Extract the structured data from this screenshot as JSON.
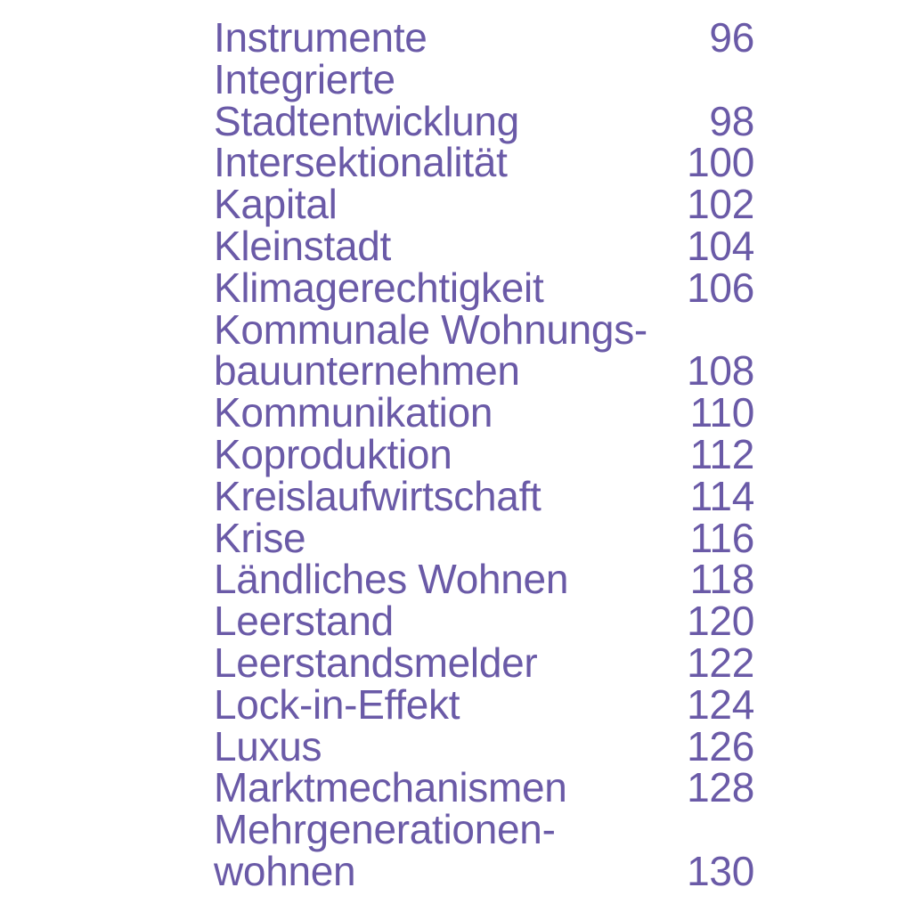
{
  "page": {
    "kind": "table-of-contents",
    "language": "de",
    "background_color": "#ffffff",
    "text_color": "#6a5aa7"
  },
  "toc": {
    "entries": [
      {
        "lines": [
          "Instrumente"
        ],
        "page": "96"
      },
      {
        "lines": [
          "Integrierte",
          "Stadtentwicklung"
        ],
        "page": "98"
      },
      {
        "lines": [
          "Intersektionalität"
        ],
        "page": "100"
      },
      {
        "lines": [
          "Kapital"
        ],
        "page": "102"
      },
      {
        "lines": [
          "Kleinstadt"
        ],
        "page": "104"
      },
      {
        "lines": [
          "Klimagerechtigkeit"
        ],
        "page": "106"
      },
      {
        "lines": [
          "Kommunale Wohnungs-",
          "bauunternehmen"
        ],
        "page": "108"
      },
      {
        "lines": [
          "Kommunikation"
        ],
        "page": "110"
      },
      {
        "lines": [
          "Koproduktion"
        ],
        "page": "112"
      },
      {
        "lines": [
          "Kreislaufwirtschaft"
        ],
        "page": "114"
      },
      {
        "lines": [
          "Krise"
        ],
        "page": "116"
      },
      {
        "lines": [
          "Ländliches Wohnen"
        ],
        "page": "118"
      },
      {
        "lines": [
          "Leerstand"
        ],
        "page": "120"
      },
      {
        "lines": [
          "Leerstandsmelder"
        ],
        "page": "122"
      },
      {
        "lines": [
          "Lock-in-Effekt"
        ],
        "page": "124"
      },
      {
        "lines": [
          "Luxus"
        ],
        "page": "126"
      },
      {
        "lines": [
          "Marktmechanismen"
        ],
        "page": "128"
      },
      {
        "lines": [
          "Mehrgenerationen-",
          "wohnen"
        ],
        "page": "130"
      }
    ]
  }
}
